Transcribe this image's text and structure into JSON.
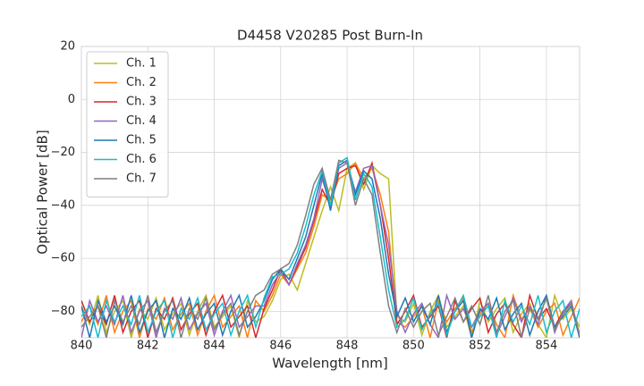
{
  "chart_data": {
    "type": "line",
    "title": "D4458 V20285 Post Burn-In",
    "x_label": "Wavelength [nm]",
    "y_label": "Optical Power [dB]",
    "xlim": [
      840,
      855
    ],
    "ylim": [
      -90,
      20
    ],
    "xticks": [
      840,
      842,
      844,
      846,
      848,
      850,
      852,
      854
    ],
    "yticks": [
      {
        "value": -80,
        "label": "−80"
      },
      {
        "value": -60,
        "label": "−60"
      },
      {
        "value": -40,
        "label": "−40"
      },
      {
        "value": -20,
        "label": "−20"
      },
      0,
      20
    ],
    "grid": true,
    "legend": "upper left",
    "x": [
      840,
      840.25,
      840.5,
      840.75,
      841,
      841.25,
      841.5,
      841.75,
      842,
      842.25,
      842.5,
      842.75,
      843,
      843.25,
      843.5,
      843.75,
      844,
      844.25,
      844.5,
      844.75,
      845,
      845.25,
      845.5,
      845.75,
      846,
      846.25,
      846.5,
      846.75,
      847,
      847.25,
      847.5,
      847.75,
      848,
      848.25,
      848.5,
      848.75,
      849,
      849.25,
      849.5,
      849.75,
      850,
      850.25,
      850.5,
      850.75,
      851,
      851.25,
      851.5,
      851.75,
      852,
      852.25,
      852.5,
      852.75,
      853,
      853.25,
      853.5,
      853.75,
      854,
      854.25,
      854.5,
      854.75,
      855
    ],
    "series": [
      {
        "name": "Ch. 1",
        "color": "#bcbd22",
        "values": [
          -78,
          -85,
          -74,
          -88,
          -80,
          -76,
          -90,
          -79,
          -83,
          -75,
          -87,
          -81,
          -77,
          -89,
          -80,
          -74,
          -86,
          -82,
          -78,
          -90,
          -76,
          -84,
          -82,
          -76,
          -68,
          -66,
          -72,
          -62,
          -52,
          -42,
          -33,
          -42,
          -26,
          -24,
          -34,
          -25,
          -28,
          -30,
          -82,
          -84,
          -77,
          -89,
          -80,
          -74,
          -86,
          -82,
          -78,
          -90,
          -76,
          -84,
          -79,
          -75,
          -88,
          -81,
          -77,
          -85,
          -90,
          -74,
          -83,
          -79,
          -86
        ]
      },
      {
        "name": "Ch. 2",
        "color": "#ff7f0e",
        "values": [
          -84,
          -78,
          -85,
          -74,
          -88,
          -80,
          -76,
          -90,
          -79,
          -83,
          -75,
          -87,
          -81,
          -77,
          -89,
          -80,
          -74,
          -86,
          -82,
          -78,
          -90,
          -76,
          -80,
          -74,
          -66,
          -70,
          -64,
          -58,
          -48,
          -36,
          -38,
          -30,
          -28,
          -24,
          -30,
          -26,
          -36,
          -50,
          -84,
          -86,
          -82,
          -78,
          -90,
          -76,
          -84,
          -79,
          -75,
          -88,
          -81,
          -77,
          -85,
          -90,
          -74,
          -83,
          -79,
          -86,
          -80,
          -77,
          -89,
          -82,
          -75
        ]
      },
      {
        "name": "Ch. 3",
        "color": "#d62728",
        "values": [
          -76,
          -84,
          -78,
          -85,
          -74,
          -88,
          -80,
          -76,
          -90,
          -79,
          -83,
          -75,
          -87,
          -81,
          -77,
          -89,
          -80,
          -74,
          -86,
          -82,
          -78,
          -90,
          -79,
          -72,
          -64,
          -70,
          -63,
          -56,
          -46,
          -34,
          -40,
          -28,
          -26,
          -25,
          -32,
          -24,
          -40,
          -60,
          -85,
          -80,
          -74,
          -86,
          -82,
          -78,
          -90,
          -76,
          -84,
          -79,
          -75,
          -88,
          -81,
          -77,
          -85,
          -90,
          -74,
          -83,
          -79,
          -86,
          -80,
          -77,
          -89
        ]
      },
      {
        "name": "Ch. 4",
        "color": "#9467bd",
        "values": [
          -90,
          -76,
          -84,
          -78,
          -85,
          -74,
          -88,
          -80,
          -76,
          -90,
          -79,
          -83,
          -75,
          -87,
          -81,
          -77,
          -89,
          -80,
          -74,
          -86,
          -82,
          -78,
          -78,
          -70,
          -65,
          -70,
          -62,
          -55,
          -45,
          -30,
          -40,
          -26,
          -24,
          -35,
          -26,
          -25,
          -40,
          -55,
          -80,
          -88,
          -81,
          -77,
          -85,
          -90,
          -74,
          -83,
          -79,
          -86,
          -80,
          -77,
          -89,
          -82,
          -75,
          -84,
          -78,
          -85,
          -74,
          -88,
          -80,
          -76,
          -90
        ]
      },
      {
        "name": "Ch. 5",
        "color": "#1f77b4",
        "values": [
          -78,
          -90,
          -76,
          -84,
          -78,
          -85,
          -74,
          -88,
          -80,
          -76,
          -90,
          -79,
          -83,
          -75,
          -87,
          -81,
          -77,
          -89,
          -80,
          -74,
          -86,
          -82,
          -76,
          -68,
          -64,
          -68,
          -60,
          -52,
          -40,
          -28,
          -42,
          -25,
          -23,
          -36,
          -27,
          -30,
          -45,
          -66,
          -82,
          -75,
          -84,
          -78,
          -85,
          -74,
          -88,
          -80,
          -76,
          -90,
          -79,
          -83,
          -75,
          -87,
          -81,
          -77,
          -89,
          -80,
          -74,
          -86,
          -82,
          -78,
          -90
        ]
      },
      {
        "name": "Ch. 6",
        "color": "#17becf",
        "values": [
          -82,
          -78,
          -90,
          -76,
          -84,
          -78,
          -85,
          -74,
          -88,
          -80,
          -76,
          -90,
          -79,
          -83,
          -75,
          -87,
          -81,
          -77,
          -89,
          -80,
          -74,
          -86,
          -75,
          -67,
          -66,
          -64,
          -58,
          -48,
          -36,
          -27,
          -40,
          -24,
          -22,
          -38,
          -28,
          -33,
          -52,
          -72,
          -86,
          -83,
          -75,
          -87,
          -81,
          -77,
          -89,
          -80,
          -74,
          -86,
          -82,
          -78,
          -90,
          -76,
          -84,
          -78,
          -85,
          -74,
          -88,
          -80,
          -76,
          -90,
          -79
        ]
      },
      {
        "name": "Ch. 7",
        "color": "#7f7f7f",
        "values": [
          -86,
          -82,
          -78,
          -90,
          -76,
          -84,
          -78,
          -85,
          -74,
          -88,
          -80,
          -76,
          -90,
          -79,
          -83,
          -75,
          -87,
          -81,
          -77,
          -89,
          -80,
          -74,
          -72,
          -66,
          -64,
          -62,
          -55,
          -44,
          -32,
          -26,
          -38,
          -23,
          -24,
          -40,
          -30,
          -36,
          -58,
          -78,
          -88,
          -79,
          -86,
          -80,
          -77,
          -89,
          -82,
          -75,
          -84,
          -78,
          -85,
          -74,
          -88,
          -80,
          -76,
          -90,
          -79,
          -83,
          -75,
          -87,
          -81,
          -77,
          -89
        ]
      }
    ]
  }
}
